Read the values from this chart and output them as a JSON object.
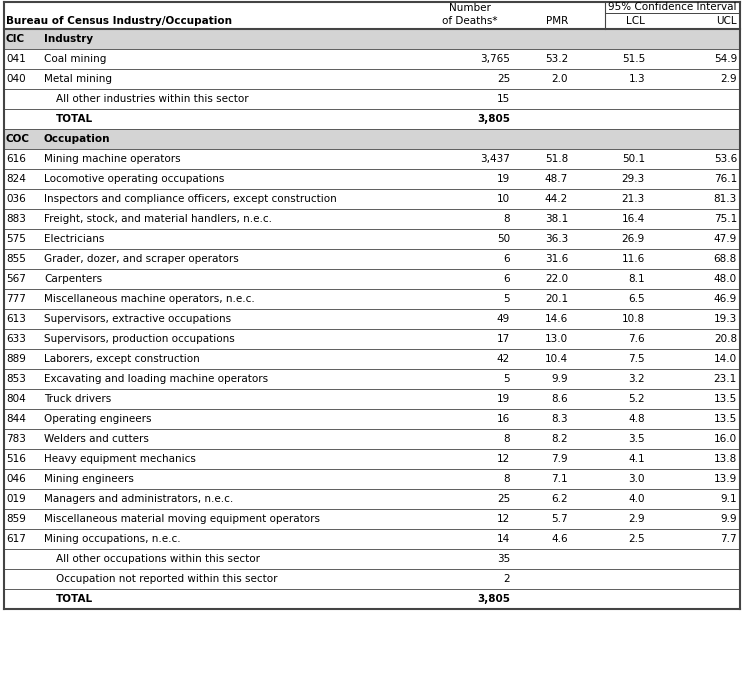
{
  "rows": [
    {
      "code": "CIC",
      "desc": "Industry",
      "deaths": "",
      "pmr": "",
      "lcl": "",
      "ucl": "",
      "section_header": true,
      "bold_desc": true,
      "bold_deaths": false,
      "indent": 0
    },
    {
      "code": "041",
      "desc": "Coal mining",
      "deaths": "3,765",
      "pmr": "53.2",
      "lcl": "51.5",
      "ucl": "54.9",
      "section_header": false,
      "bold_desc": false,
      "bold_deaths": false,
      "indent": 0
    },
    {
      "code": "040",
      "desc": "Metal mining",
      "deaths": "25",
      "pmr": "2.0",
      "lcl": "1.3",
      "ucl": "2.9",
      "section_header": false,
      "bold_desc": false,
      "bold_deaths": false,
      "indent": 0
    },
    {
      "code": "",
      "desc": "All other industries within this sector",
      "deaths": "15",
      "pmr": "",
      "lcl": "",
      "ucl": "",
      "section_header": false,
      "bold_desc": false,
      "bold_deaths": false,
      "indent": 1
    },
    {
      "code": "",
      "desc": "TOTAL",
      "deaths": "3,805",
      "pmr": "",
      "lcl": "",
      "ucl": "",
      "section_header": false,
      "bold_desc": true,
      "bold_deaths": true,
      "indent": 1
    },
    {
      "code": "COC",
      "desc": "Occupation",
      "deaths": "",
      "pmr": "",
      "lcl": "",
      "ucl": "",
      "section_header": true,
      "bold_desc": true,
      "bold_deaths": false,
      "indent": 0
    },
    {
      "code": "616",
      "desc": "Mining machine operators",
      "deaths": "3,437",
      "pmr": "51.8",
      "lcl": "50.1",
      "ucl": "53.6",
      "section_header": false,
      "bold_desc": false,
      "bold_deaths": false,
      "indent": 0
    },
    {
      "code": "824",
      "desc": "Locomotive operating occupations",
      "deaths": "19",
      "pmr": "48.7",
      "lcl": "29.3",
      "ucl": "76.1",
      "section_header": false,
      "bold_desc": false,
      "bold_deaths": false,
      "indent": 0
    },
    {
      "code": "036",
      "desc": "Inspectors and compliance officers, except construction",
      "deaths": "10",
      "pmr": "44.2",
      "lcl": "21.3",
      "ucl": "81.3",
      "section_header": false,
      "bold_desc": false,
      "bold_deaths": false,
      "indent": 0
    },
    {
      "code": "883",
      "desc": "Freight, stock, and material handlers, n.e.c.",
      "deaths": "8",
      "pmr": "38.1",
      "lcl": "16.4",
      "ucl": "75.1",
      "section_header": false,
      "bold_desc": false,
      "bold_deaths": false,
      "indent": 0
    },
    {
      "code": "575",
      "desc": "Electricians",
      "deaths": "50",
      "pmr": "36.3",
      "lcl": "26.9",
      "ucl": "47.9",
      "section_header": false,
      "bold_desc": false,
      "bold_deaths": false,
      "indent": 0
    },
    {
      "code": "855",
      "desc": "Grader, dozer, and scraper operators",
      "deaths": "6",
      "pmr": "31.6",
      "lcl": "11.6",
      "ucl": "68.8",
      "section_header": false,
      "bold_desc": false,
      "bold_deaths": false,
      "indent": 0
    },
    {
      "code": "567",
      "desc": "Carpenters",
      "deaths": "6",
      "pmr": "22.0",
      "lcl": "8.1",
      "ucl": "48.0",
      "section_header": false,
      "bold_desc": false,
      "bold_deaths": false,
      "indent": 0
    },
    {
      "code": "777",
      "desc": "Miscellaneous machine operators, n.e.c.",
      "deaths": "5",
      "pmr": "20.1",
      "lcl": "6.5",
      "ucl": "46.9",
      "section_header": false,
      "bold_desc": false,
      "bold_deaths": false,
      "indent": 0
    },
    {
      "code": "613",
      "desc": "Supervisors, extractive occupations",
      "deaths": "49",
      "pmr": "14.6",
      "lcl": "10.8",
      "ucl": "19.3",
      "section_header": false,
      "bold_desc": false,
      "bold_deaths": false,
      "indent": 0
    },
    {
      "code": "633",
      "desc": "Supervisors, production occupations",
      "deaths": "17",
      "pmr": "13.0",
      "lcl": "7.6",
      "ucl": "20.8",
      "section_header": false,
      "bold_desc": false,
      "bold_deaths": false,
      "indent": 0
    },
    {
      "code": "889",
      "desc": "Laborers, except construction",
      "deaths": "42",
      "pmr": "10.4",
      "lcl": "7.5",
      "ucl": "14.0",
      "section_header": false,
      "bold_desc": false,
      "bold_deaths": false,
      "indent": 0
    },
    {
      "code": "853",
      "desc": "Excavating and loading machine operators",
      "deaths": "5",
      "pmr": "9.9",
      "lcl": "3.2",
      "ucl": "23.1",
      "section_header": false,
      "bold_desc": false,
      "bold_deaths": false,
      "indent": 0
    },
    {
      "code": "804",
      "desc": "Truck drivers",
      "deaths": "19",
      "pmr": "8.6",
      "lcl": "5.2",
      "ucl": "13.5",
      "section_header": false,
      "bold_desc": false,
      "bold_deaths": false,
      "indent": 0
    },
    {
      "code": "844",
      "desc": "Operating engineers",
      "deaths": "16",
      "pmr": "8.3",
      "lcl": "4.8",
      "ucl": "13.5",
      "section_header": false,
      "bold_desc": false,
      "bold_deaths": false,
      "indent": 0
    },
    {
      "code": "783",
      "desc": "Welders and cutters",
      "deaths": "8",
      "pmr": "8.2",
      "lcl": "3.5",
      "ucl": "16.0",
      "section_header": false,
      "bold_desc": false,
      "bold_deaths": false,
      "indent": 0
    },
    {
      "code": "516",
      "desc": "Heavy equipment mechanics",
      "deaths": "12",
      "pmr": "7.9",
      "lcl": "4.1",
      "ucl": "13.8",
      "section_header": false,
      "bold_desc": false,
      "bold_deaths": false,
      "indent": 0
    },
    {
      "code": "046",
      "desc": "Mining engineers",
      "deaths": "8",
      "pmr": "7.1",
      "lcl": "3.0",
      "ucl": "13.9",
      "section_header": false,
      "bold_desc": false,
      "bold_deaths": false,
      "indent": 0
    },
    {
      "code": "019",
      "desc": "Managers and administrators, n.e.c.",
      "deaths": "25",
      "pmr": "6.2",
      "lcl": "4.0",
      "ucl": "9.1",
      "section_header": false,
      "bold_desc": false,
      "bold_deaths": false,
      "indent": 0
    },
    {
      "code": "859",
      "desc": "Miscellaneous material moving equipment operators",
      "deaths": "12",
      "pmr": "5.7",
      "lcl": "2.9",
      "ucl": "9.9",
      "section_header": false,
      "bold_desc": false,
      "bold_deaths": false,
      "indent": 0
    },
    {
      "code": "617",
      "desc": "Mining occupations, n.e.c.",
      "deaths": "14",
      "pmr": "4.6",
      "lcl": "2.5",
      "ucl": "7.7",
      "section_header": false,
      "bold_desc": false,
      "bold_deaths": false,
      "indent": 0
    },
    {
      "code": "",
      "desc": "All other occupations within this sector",
      "deaths": "35",
      "pmr": "",
      "lcl": "",
      "ucl": "",
      "section_header": false,
      "bold_desc": false,
      "bold_deaths": false,
      "indent": 1
    },
    {
      "code": "",
      "desc": "Occupation not reported within this sector",
      "deaths": "2",
      "pmr": "",
      "lcl": "",
      "ucl": "",
      "section_header": false,
      "bold_desc": false,
      "bold_deaths": false,
      "indent": 1
    },
    {
      "code": "",
      "desc": "TOTAL",
      "deaths": "3,805",
      "pmr": "",
      "lcl": "",
      "ucl": "",
      "section_header": false,
      "bold_desc": true,
      "bold_deaths": true,
      "indent": 1
    }
  ],
  "bg_color_section": "#d4d4d4",
  "bg_color_white": "#ffffff",
  "line_color": "#444444",
  "text_color": "#000000",
  "font_size": 7.5,
  "header_font_size": 7.5,
  "figwidth": 7.44,
  "figheight": 6.77,
  "dpi": 100
}
